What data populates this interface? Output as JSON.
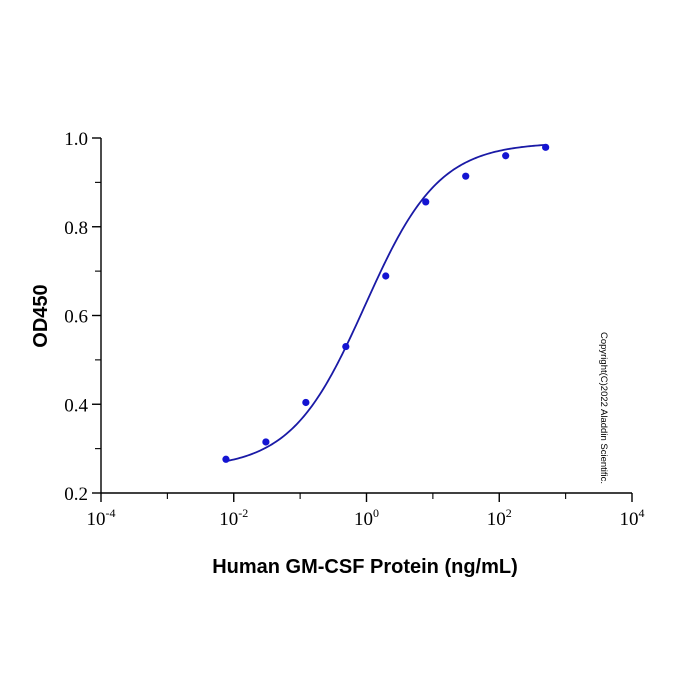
{
  "chart_data": {
    "type": "scatter",
    "title": "",
    "xlabel": "Human GM-CSF Protein (ng/mL)",
    "ylabel": "OD450",
    "x_scale": "log",
    "xlim": [
      0.0001,
      10000
    ],
    "ylim": [
      0.2,
      1.0
    ],
    "x_ticks": [
      {
        "base": "10",
        "exp": "-4",
        "value": 0.0001
      },
      {
        "base": "10",
        "exp": "-2",
        "value": 0.01
      },
      {
        "base": "10",
        "exp": "0",
        "value": 1
      },
      {
        "base": "10",
        "exp": "2",
        "value": 100
      },
      {
        "base": "10",
        "exp": "4",
        "value": 10000
      }
    ],
    "y_ticks": [
      {
        "label": "0.2",
        "value": 0.2
      },
      {
        "label": "0.4",
        "value": 0.4
      },
      {
        "label": "0.6",
        "value": 0.6
      },
      {
        "label": "0.8",
        "value": 0.8
      },
      {
        "label": "1.0",
        "value": 1.0
      }
    ],
    "grid": false,
    "legend": "none",
    "series": [
      {
        "points": [
          {
            "x": 0.00763,
            "y": 0.276
          },
          {
            "x": 0.0305,
            "y": 0.315
          },
          {
            "x": 0.122,
            "y": 0.404
          },
          {
            "x": 0.488,
            "y": 0.53
          },
          {
            "x": 1.95,
            "y": 0.689
          },
          {
            "x": 7.81,
            "y": 0.856
          },
          {
            "x": 31.25,
            "y": 0.914
          },
          {
            "x": 125,
            "y": 0.96
          },
          {
            "x": 500,
            "y": 0.979
          }
        ],
        "color": "#1414d2"
      }
    ],
    "fit_curve": {
      "model": "4PL",
      "bottom": 0.255,
      "top": 0.99,
      "ec50": 0.95,
      "hill": 0.78,
      "x_range": [
        0.00763,
        500
      ],
      "color": "#1a1aa6"
    },
    "annotation": "Copyright(C)2022 Aladdin Scientific."
  }
}
